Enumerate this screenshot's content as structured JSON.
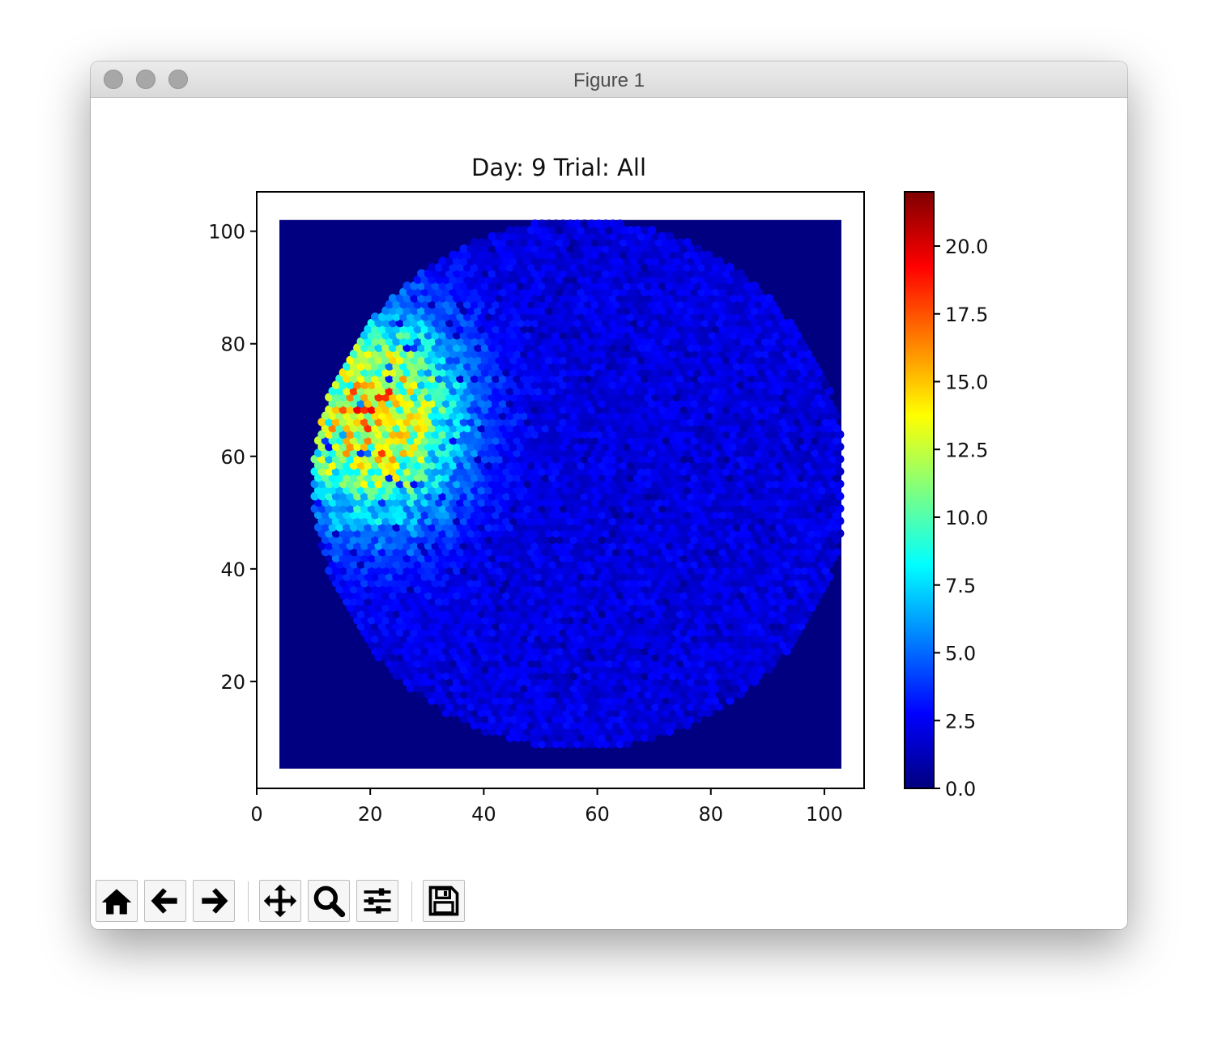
{
  "window": {
    "title": "Figure 1"
  },
  "toolbar": {
    "items": [
      {
        "icon": "home-icon",
        "label": "Home"
      },
      {
        "icon": "back-arrow-icon",
        "label": "Back"
      },
      {
        "icon": "forward-arrow-icon",
        "label": "Forward"
      },
      {
        "icon": "pan-icon",
        "label": "Pan"
      },
      {
        "icon": "zoom-icon",
        "label": "Zoom"
      },
      {
        "icon": "configure-subplots-icon",
        "label": "Configure subplots"
      },
      {
        "icon": "save-icon",
        "label": "Save"
      }
    ]
  },
  "chart_data": {
    "type": "heatmap",
    "subtype": "hexbin",
    "title": "Day: 9 Trial: All",
    "xlabel": "",
    "ylabel": "",
    "xlim": [
      0,
      107
    ],
    "ylim": [
      1,
      107
    ],
    "xticks": [
      0,
      20,
      40,
      60,
      80,
      100
    ],
    "yticks": [
      20,
      40,
      60,
      80,
      100
    ],
    "data_extent": {
      "x": [
        4,
        103
      ],
      "y": [
        4.5,
        102
      ]
    },
    "colormap": "jet",
    "colorbar": {
      "min": 0,
      "max": 22,
      "ticks": [
        "0.0",
        "2.5",
        "5.0",
        "7.5",
        "10.0",
        "12.5",
        "15.0",
        "17.5",
        "20.0"
      ]
    },
    "arena": {
      "center": [
        57,
        55
      ],
      "radius": 47
    },
    "hotspot": {
      "center": [
        20,
        67
      ],
      "peak_value": 22
    },
    "grid": false
  }
}
